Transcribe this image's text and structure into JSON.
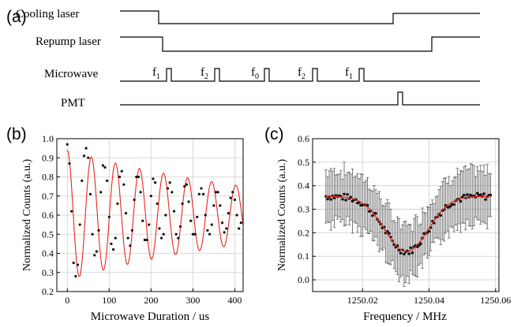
{
  "panel_labels": {
    "a": "(a)",
    "b": "(b)",
    "c": "(c)"
  },
  "timing": {
    "rows": [
      {
        "label": "Cooling laser"
      },
      {
        "label": "Repump laser"
      },
      {
        "label": "Microwave"
      },
      {
        "label": "PMT"
      }
    ],
    "pulses": [
      {
        "base": "f",
        "sub": "1"
      },
      {
        "base": "f",
        "sub": "2"
      },
      {
        "base": "f",
        "sub": "0"
      },
      {
        "base": "f",
        "sub": "2"
      },
      {
        "base": "f",
        "sub": "1"
      }
    ]
  },
  "colors": {
    "fit": "#e8281e",
    "points": "#111111",
    "errorbar": "#555555",
    "axis": "#000000"
  },
  "chart_data": [
    {
      "type": "scatter",
      "panel": "b",
      "xlabel": "Microwave Duration / us",
      "ylabel": "Normalized Counts (a.u.)",
      "xlim": [
        -25,
        420
      ],
      "ylim": [
        0.2,
        1.0
      ],
      "xticks": [
        0,
        100,
        200,
        300,
        400
      ],
      "yticks": [
        0.2,
        0.3,
        0.4,
        0.5,
        0.6,
        0.7,
        0.8,
        0.9,
        1.0
      ],
      "grid": true,
      "fit": {
        "model": "damped_cosine",
        "offset": 0.6,
        "amp0": 0.34,
        "tau": 520,
        "period": 57.5
      },
      "series": [
        {
          "x": [
            0,
            5,
            10,
            15,
            20,
            25,
            30,
            35,
            40,
            45,
            50,
            55,
            60,
            65,
            70,
            75,
            80,
            85,
            90,
            95,
            100,
            105,
            110,
            115,
            120,
            125,
            130,
            135,
            140,
            145,
            150,
            155,
            160,
            165,
            170,
            175,
            180,
            185,
            190,
            195,
            200,
            205,
            210,
            215,
            220,
            225,
            230,
            235,
            240,
            245,
            250,
            255,
            260,
            265,
            270,
            275,
            280,
            285,
            290,
            295,
            300,
            305,
            310,
            315,
            320,
            325,
            330,
            335,
            340,
            345,
            350,
            355,
            360,
            365,
            370,
            375,
            380,
            385,
            390,
            395,
            400,
            405,
            410,
            415
          ],
          "y": [
            0.97,
            0.87,
            0.62,
            0.35,
            0.28,
            0.34,
            0.55,
            0.78,
            0.91,
            0.95,
            0.9,
            0.71,
            0.5,
            0.39,
            0.41,
            0.52,
            0.72,
            0.86,
            0.85,
            0.78,
            0.59,
            0.45,
            0.42,
            0.48,
            0.66,
            0.8,
            0.83,
            0.76,
            0.61,
            0.48,
            0.44,
            0.52,
            0.68,
            0.8,
            0.8,
            0.72,
            0.57,
            0.47,
            0.47,
            0.55,
            0.7,
            0.79,
            0.77,
            0.66,
            0.53,
            0.48,
            0.5,
            0.6,
            0.74,
            0.77,
            0.72,
            0.62,
            0.5,
            0.48,
            0.54,
            0.66,
            0.75,
            0.76,
            0.67,
            0.57,
            0.5,
            0.5,
            0.59,
            0.71,
            0.74,
            0.71,
            0.6,
            0.52,
            0.5,
            0.55,
            0.65,
            0.72,
            0.72,
            0.65,
            0.56,
            0.51,
            0.53,
            0.61,
            0.69,
            0.72,
            0.68,
            0.6,
            0.53,
            0.56
          ]
        }
      ]
    },
    {
      "type": "scatter",
      "panel": "c",
      "xlabel": "Frequency / MHz",
      "ylabel": "Normalized Counts (a.u.)",
      "xlim": [
        1250.005,
        1250.061
      ],
      "ylim": [
        -0.05,
        0.6
      ],
      "xticks": [
        1250.02,
        1250.04,
        1250.06
      ],
      "xticklabels": [
        "1250.02",
        "1250.04",
        "1250.06"
      ],
      "yticks": [
        0.0,
        0.1,
        0.2,
        0.3,
        0.4,
        0.5,
        0.6
      ],
      "grid": true,
      "fit": {
        "model": "gaussian_dip",
        "baseline": 0.355,
        "depth": 0.235,
        "center": 1250.0332,
        "sigma": 0.0065
      },
      "series": [
        {
          "x_start": 1250.009,
          "x_end": 1250.0585,
          "count": 100,
          "y_mean_follows_fit": true,
          "y_scatter": 0.015,
          "error_bar": 0.11
        }
      ]
    }
  ]
}
